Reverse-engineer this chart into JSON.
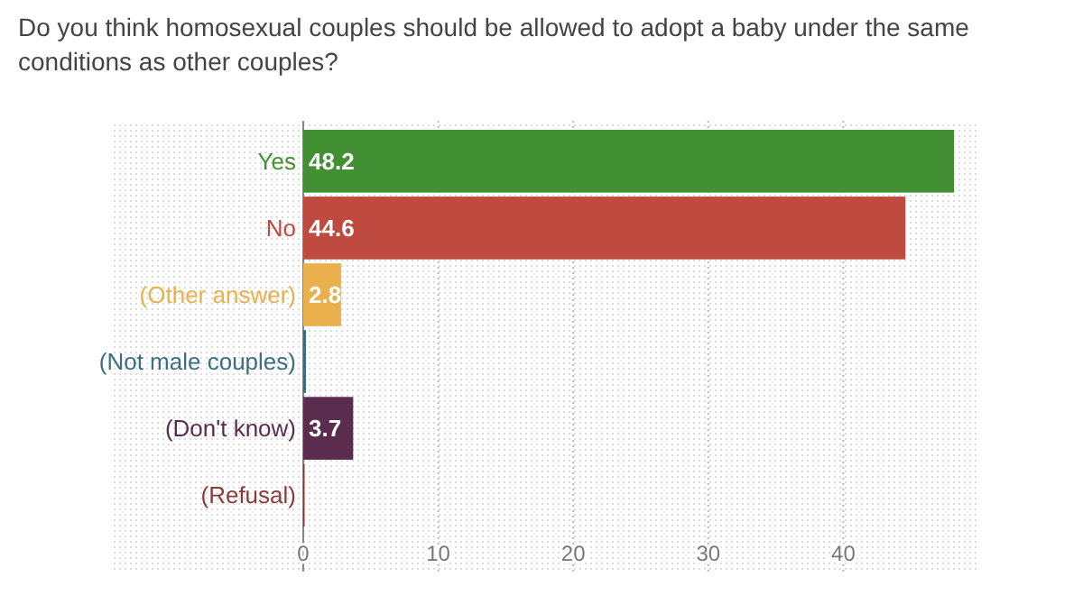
{
  "chart_data": {
    "type": "bar",
    "orientation": "horizontal",
    "title": "Do you think homosexual couples should be allowed to adopt a baby under the same conditions as other couples?",
    "categories": [
      "Yes",
      "No",
      "(Other answer)",
      "(Not male couples)",
      "(Don't know)",
      "(Refusal)"
    ],
    "values": [
      48.2,
      44.6,
      2.8,
      0.2,
      3.7,
      0.1
    ],
    "value_labels": [
      "48.2",
      "44.6",
      "2.8",
      null,
      "3.7",
      null
    ],
    "colors": [
      "#438f34",
      "#bf4a40",
      "#e9b04d",
      "#3b6e80",
      "#5a2d4f",
      "#8b3a3a"
    ],
    "xlim": [
      0,
      50
    ],
    "xticks": [
      0,
      10,
      20,
      30,
      40
    ],
    "grid": "x"
  }
}
